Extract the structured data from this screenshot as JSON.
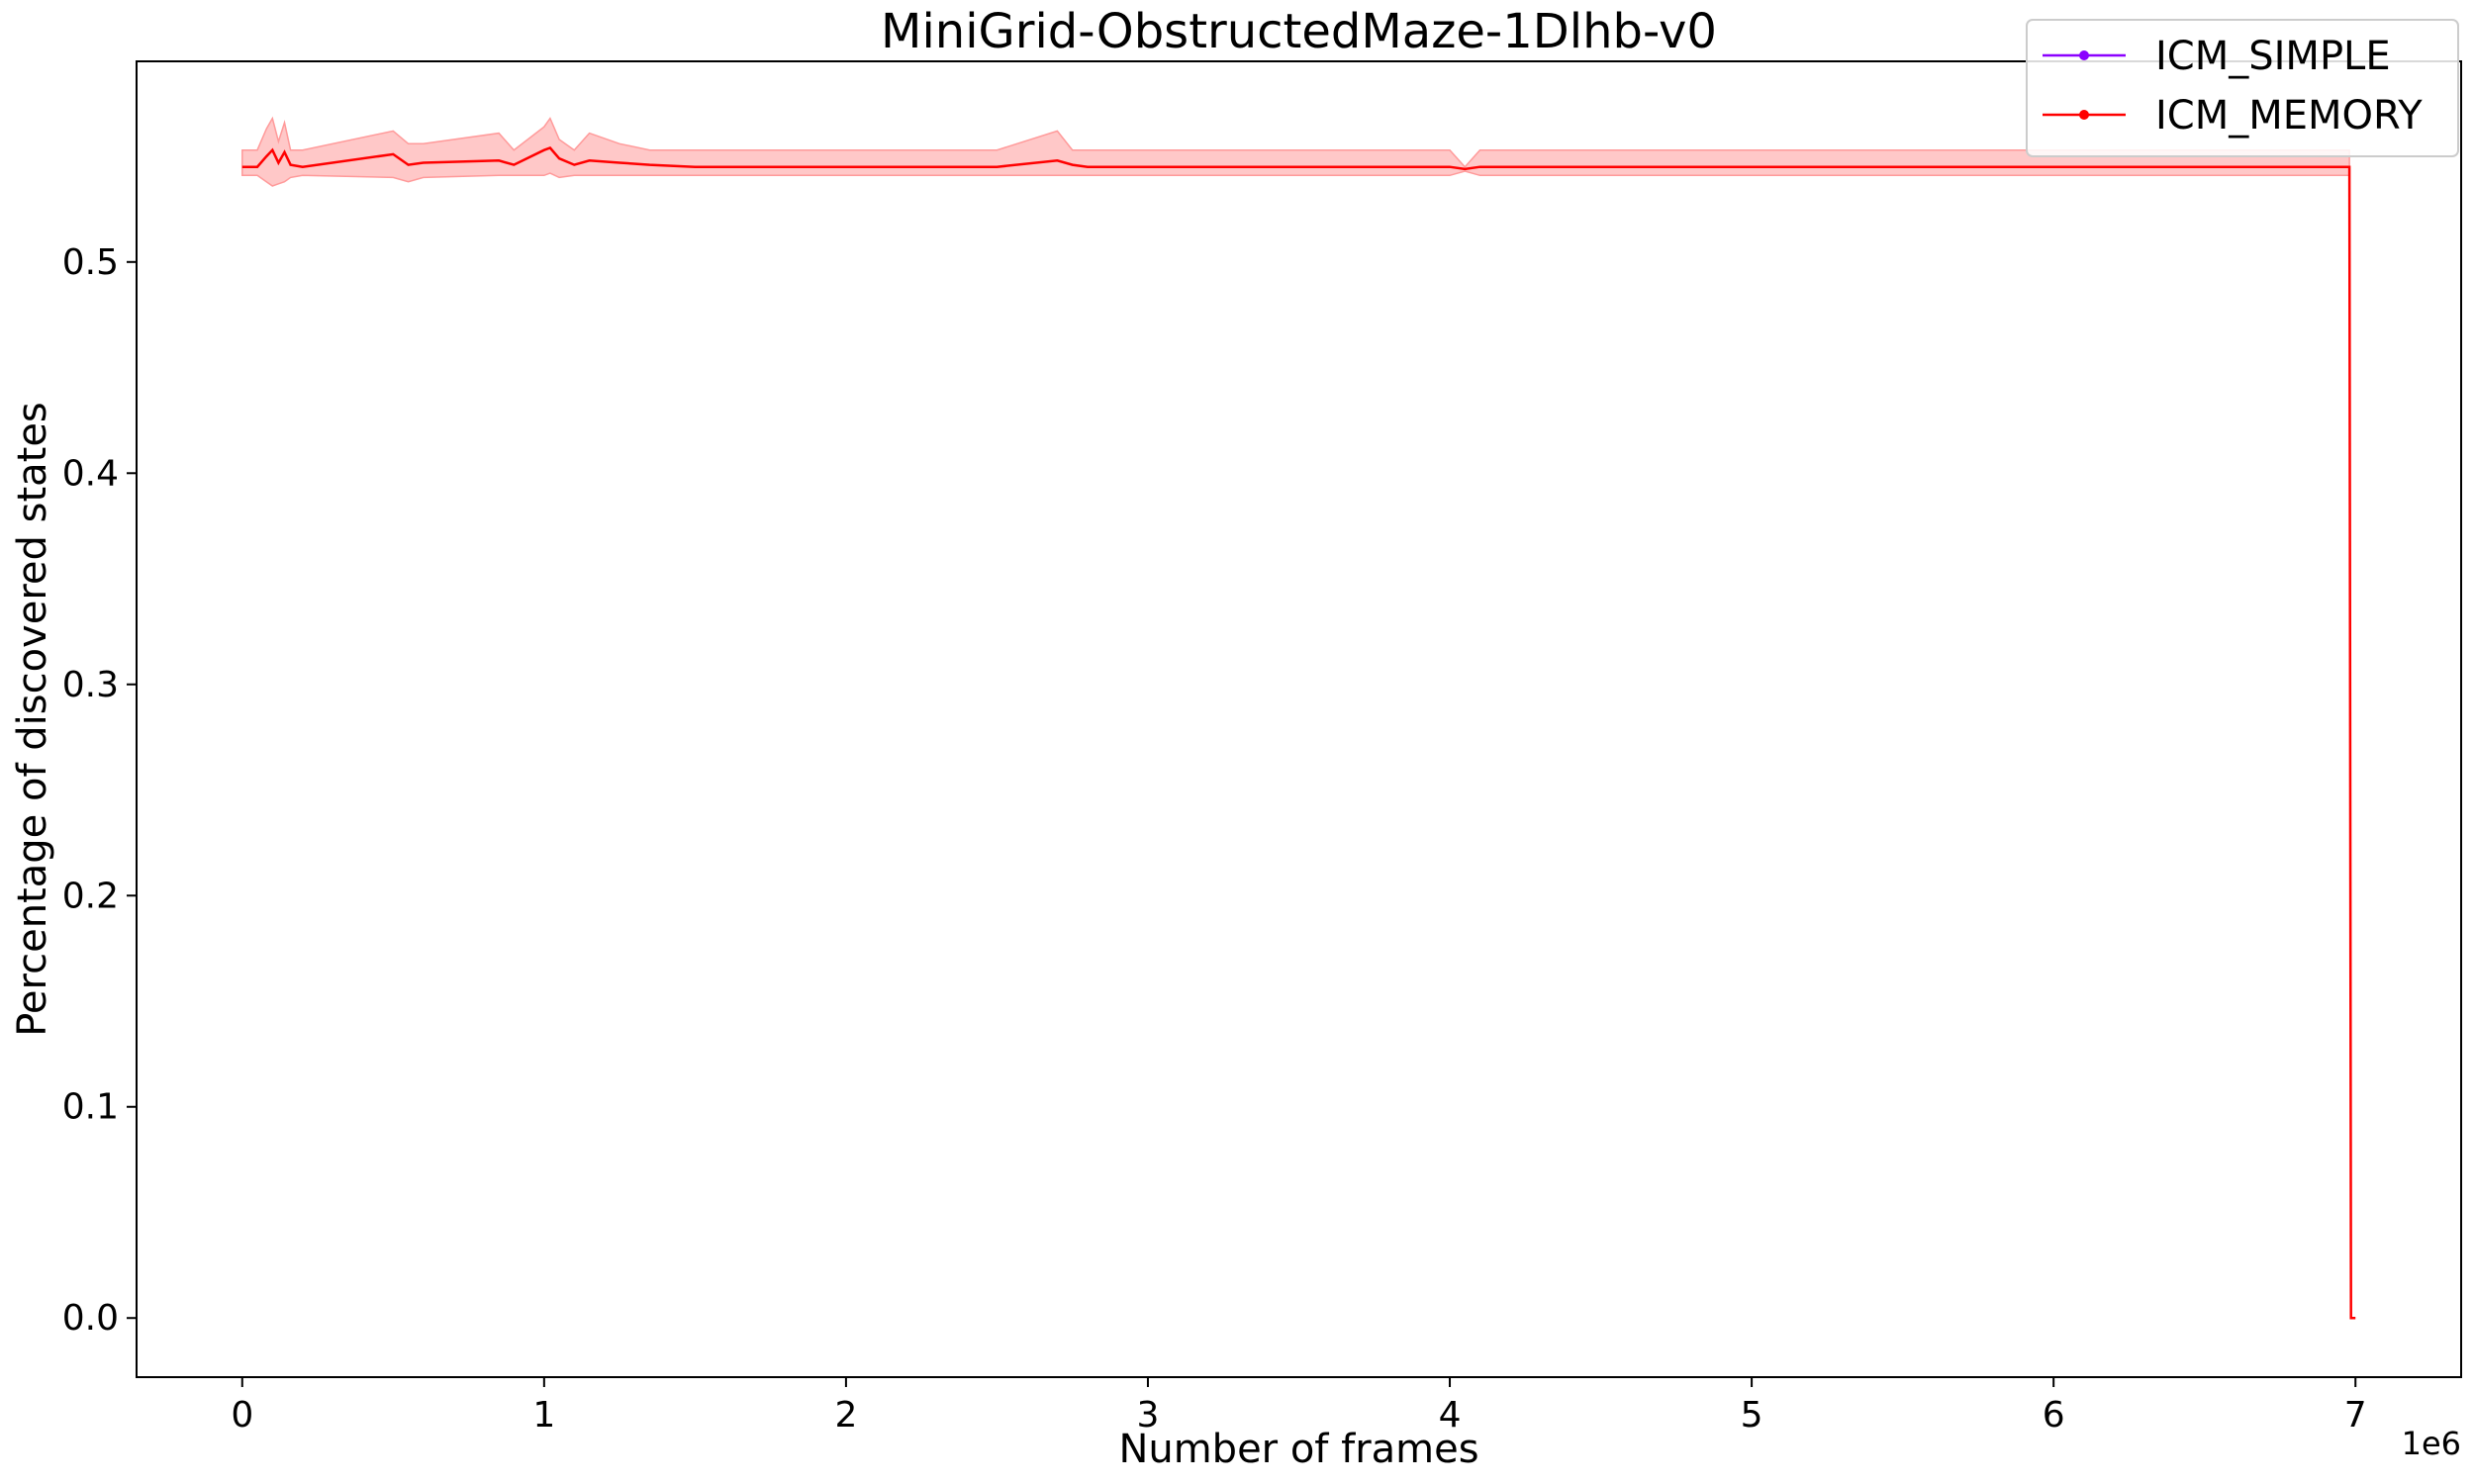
{
  "chart_data": {
    "type": "line",
    "title": "MiniGrid-ObstructedMaze-1Dlhb-v0",
    "xlabel": "Number of frames",
    "ylabel": "Percentage of discovered states",
    "x_offset_label": "1e6",
    "xlim": [
      -0.35,
      7.35
    ],
    "ylim": [
      -0.028,
      0.595
    ],
    "x_ticks": [
      0,
      1,
      2,
      3,
      4,
      5,
      6,
      7
    ],
    "x_tick_labels": [
      "0",
      "1",
      "2",
      "3",
      "4",
      "5",
      "6",
      "7"
    ],
    "y_ticks": [
      0.0,
      0.1,
      0.2,
      0.3,
      0.4,
      0.5
    ],
    "y_tick_labels": [
      "0.0",
      "0.1",
      "0.2",
      "0.3",
      "0.4",
      "0.5"
    ],
    "grid": false,
    "legend_position": "top-right",
    "series": [
      {
        "name": "ICM_SIMPLE",
        "color": "#8b00ff",
        "x": [],
        "values": []
      },
      {
        "name": "ICM_MEMORY",
        "color": "#ff0000",
        "band_color": "#ff9a9a",
        "x": [
          0,
          0.05,
          0.08,
          0.1,
          0.12,
          0.14,
          0.16,
          0.2,
          0.5,
          0.55,
          0.6,
          0.85,
          0.9,
          1.0,
          1.02,
          1.05,
          1.1,
          1.15,
          1.25,
          1.35,
          1.5,
          1.6,
          1.7,
          2.0,
          2.5,
          2.7,
          2.75,
          2.8,
          3.0,
          4.0,
          4.05,
          4.1,
          5.0,
          6.0,
          6.98,
          6.985,
          7.0
        ],
        "values": [
          0.545,
          0.545,
          0.55,
          0.553,
          0.547,
          0.552,
          0.546,
          0.545,
          0.551,
          0.546,
          0.547,
          0.548,
          0.546,
          0.553,
          0.554,
          0.549,
          0.546,
          0.548,
          0.547,
          0.546,
          0.545,
          0.545,
          0.545,
          0.545,
          0.545,
          0.548,
          0.546,
          0.545,
          0.545,
          0.545,
          0.544,
          0.545,
          0.545,
          0.545,
          0.545,
          0.0,
          0.0
        ],
        "lower": [
          0.541,
          0.541,
          0.538,
          0.536,
          0.537,
          0.538,
          0.54,
          0.541,
          0.54,
          0.538,
          0.54,
          0.541,
          0.541,
          0.541,
          0.542,
          0.54,
          0.541,
          0.541,
          0.541,
          0.541,
          0.541,
          0.541,
          0.541,
          0.541,
          0.541,
          0.541,
          0.541,
          0.541,
          0.541,
          0.541,
          0.543,
          0.541,
          0.541,
          0.541,
          0.541,
          0.0,
          0.0
        ],
        "upper": [
          0.553,
          0.553,
          0.563,
          0.568,
          0.557,
          0.566,
          0.553,
          0.553,
          0.562,
          0.556,
          0.556,
          0.561,
          0.553,
          0.564,
          0.568,
          0.558,
          0.553,
          0.561,
          0.556,
          0.553,
          0.553,
          0.553,
          0.553,
          0.553,
          0.553,
          0.562,
          0.553,
          0.553,
          0.553,
          0.553,
          0.545,
          0.553,
          0.553,
          0.553,
          0.553,
          0.0,
          0.0
        ]
      }
    ]
  }
}
